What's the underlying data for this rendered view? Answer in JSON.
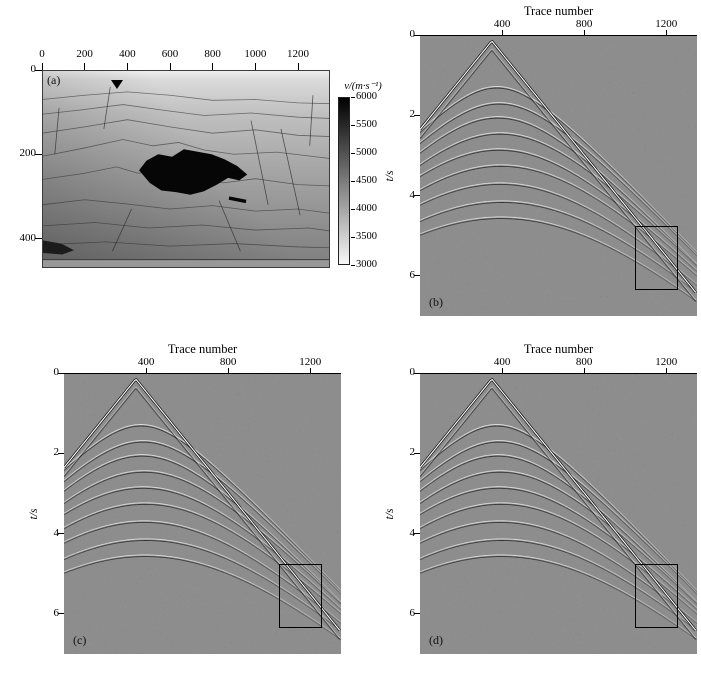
{
  "figure": {
    "colors": {
      "background": "#ffffff",
      "seismic_bg": "#8d8d8d",
      "highlight_box": "#000000"
    }
  },
  "panels": {
    "a": {
      "label": "(a)",
      "xtick_values": [
        0,
        200,
        400,
        600,
        800,
        1000,
        1200
      ],
      "ytick_values": [
        0,
        200,
        400
      ],
      "colorbar_title": "v/(m·s⁻¹)",
      "colorbar_ticks": [
        6000,
        5500,
        5000,
        4500,
        4000,
        3500,
        3000
      ],
      "colorbar_top_color": "#000000",
      "colorbar_bottom_color": "#f7f7f7"
    },
    "b": {
      "label": "(b)",
      "title": "Trace number",
      "ylabel": "t/s",
      "xtick_values": [
        400,
        800,
        1200
      ],
      "ytick_values": [
        0,
        2,
        4,
        6
      ]
    },
    "c": {
      "label": "(c)",
      "title": "Trace number",
      "ylabel": "t/s",
      "xtick_values": [
        400,
        800,
        1200
      ],
      "ytick_values": [
        0,
        2,
        4,
        6
      ]
    },
    "d": {
      "label": "(d)",
      "title": "Trace number",
      "ylabel": "t/s",
      "xtick_values": [
        400,
        800,
        1200
      ],
      "ytick_values": [
        0,
        2,
        4,
        6
      ]
    }
  },
  "chart_data": [
    {
      "type": "heatmap",
      "panel": "a",
      "title": "",
      "xlabel": "",
      "ylabel": "",
      "xlim": [
        0,
        1350
      ],
      "ylim": [
        0,
        470
      ],
      "xticks": [
        0,
        200,
        400,
        600,
        800,
        1000,
        1200
      ],
      "yticks": [
        0,
        200,
        400
      ],
      "colorbar": {
        "label": "v/(m·s⁻¹)",
        "min": 3000,
        "max": 6000,
        "ticks": [
          6000,
          5500,
          5000,
          4500,
          4000,
          3500,
          3000
        ]
      },
      "source_marker_trace": 350,
      "notes": "2-D velocity model: folded layered strata with faults, high-velocity (~6000 m/s, black) salt body in center, velocities ranging 3000-6000 m/s, source marker triangle at trace ~350"
    },
    {
      "type": "line",
      "panel": "b",
      "title": "Trace number",
      "xlabel": "Trace number",
      "ylabel": "t/s",
      "xlim": [
        0,
        1350
      ],
      "ylim": [
        0,
        7
      ],
      "xticks": [
        400,
        800,
        1200
      ],
      "yticks": [
        0,
        2,
        4,
        6
      ],
      "direct_wave": {
        "apex_trace": 350,
        "apex_time_s": 0.15,
        "slope_s_per_trace": 0.0063
      },
      "reflections": [
        {
          "t0": 1.3,
          "x0": 375,
          "v": 185
        },
        {
          "t0": 1.7,
          "x0": 385,
          "v": 185
        },
        {
          "t0": 2.05,
          "x0": 380,
          "v": 182
        },
        {
          "t0": 2.45,
          "x0": 390,
          "v": 185
        },
        {
          "t0": 2.85,
          "x0": 385,
          "v": 188
        },
        {
          "t0": 3.25,
          "x0": 395,
          "v": 190
        },
        {
          "t0": 3.7,
          "x0": 390,
          "v": 192
        },
        {
          "t0": 4.15,
          "x0": 400,
          "v": 195
        },
        {
          "t0": 4.55,
          "x0": 395,
          "v": 198
        }
      ],
      "highlight_box": {
        "trace_min": 1050,
        "trace_max": 1250,
        "t_min_s": 4.75,
        "t_max_s": 6.3
      }
    },
    {
      "type": "line",
      "panel": "c",
      "title": "Trace number",
      "xlabel": "Trace number",
      "ylabel": "t/s",
      "xlim": [
        0,
        1350
      ],
      "ylim": [
        0,
        7
      ],
      "xticks": [
        400,
        800,
        1200
      ],
      "yticks": [
        0,
        2,
        4,
        6
      ],
      "direct_wave": {
        "apex_trace": 350,
        "apex_time_s": 0.15,
        "slope_s_per_trace": 0.0063
      },
      "reflections": [
        {
          "t0": 1.3,
          "x0": 375,
          "v": 185
        },
        {
          "t0": 1.7,
          "x0": 385,
          "v": 185
        },
        {
          "t0": 2.05,
          "x0": 380,
          "v": 182
        },
        {
          "t0": 2.45,
          "x0": 390,
          "v": 185
        },
        {
          "t0": 2.85,
          "x0": 385,
          "v": 188
        },
        {
          "t0": 3.25,
          "x0": 395,
          "v": 190
        },
        {
          "t0": 3.7,
          "x0": 390,
          "v": 192
        },
        {
          "t0": 4.15,
          "x0": 400,
          "v": 195
        },
        {
          "t0": 4.55,
          "x0": 395,
          "v": 198
        }
      ],
      "highlight_box": {
        "trace_min": 1050,
        "trace_max": 1250,
        "t_min_s": 4.75,
        "t_max_s": 6.3
      }
    },
    {
      "type": "line",
      "panel": "d",
      "title": "Trace number",
      "xlabel": "Trace number",
      "ylabel": "t/s",
      "xlim": [
        0,
        1350
      ],
      "ylim": [
        0,
        7
      ],
      "xticks": [
        400,
        800,
        1200
      ],
      "yticks": [
        0,
        2,
        4,
        6
      ],
      "direct_wave": {
        "apex_trace": 350,
        "apex_time_s": 0.15,
        "slope_s_per_trace": 0.0063
      },
      "reflections": [
        {
          "t0": 1.3,
          "x0": 375,
          "v": 185
        },
        {
          "t0": 1.7,
          "x0": 385,
          "v": 185
        },
        {
          "t0": 2.05,
          "x0": 380,
          "v": 182
        },
        {
          "t0": 2.45,
          "x0": 390,
          "v": 185
        },
        {
          "t0": 2.85,
          "x0": 385,
          "v": 188
        },
        {
          "t0": 3.25,
          "x0": 395,
          "v": 190
        },
        {
          "t0": 3.7,
          "x0": 390,
          "v": 192
        },
        {
          "t0": 4.15,
          "x0": 400,
          "v": 195
        },
        {
          "t0": 4.55,
          "x0": 395,
          "v": 198
        }
      ],
      "highlight_box": {
        "trace_min": 1050,
        "trace_max": 1250,
        "t_min_s": 4.75,
        "t_max_s": 6.3
      }
    }
  ]
}
